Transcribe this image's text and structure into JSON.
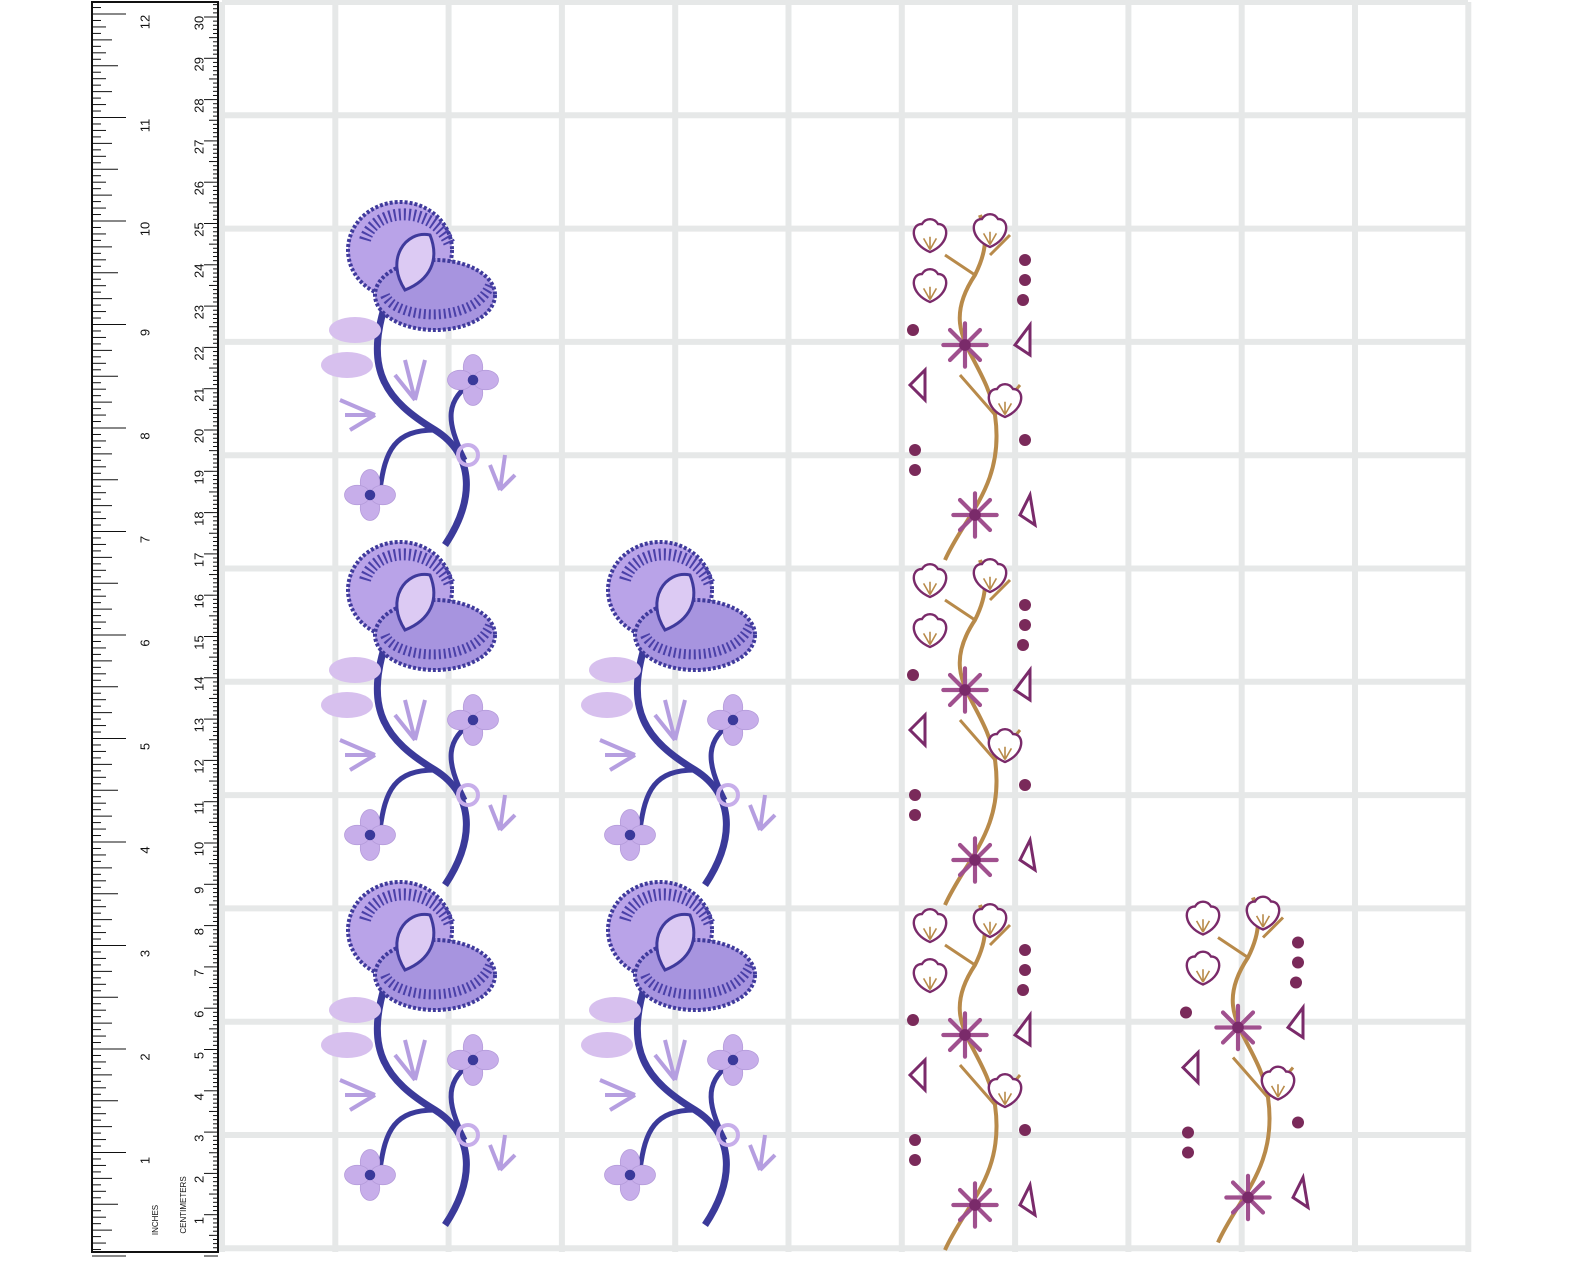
{
  "ruler": {
    "inches_label": "INCHES",
    "centimeters_label": "CENTIMETERS",
    "inches": [
      1,
      2,
      3,
      4,
      5,
      6,
      7,
      8,
      9,
      10,
      11,
      12
    ],
    "centimeters": [
      1,
      2,
      3,
      4,
      5,
      6,
      7,
      8,
      9,
      10,
      11,
      12,
      13,
      14,
      15,
      16,
      17,
      18,
      19,
      20,
      21,
      22,
      23,
      24,
      25,
      26,
      27,
      28,
      29,
      30
    ]
  }
}
